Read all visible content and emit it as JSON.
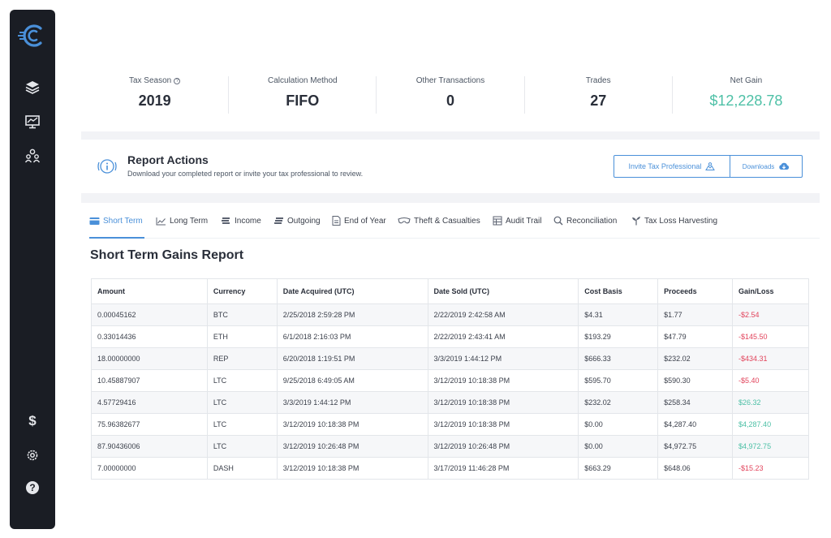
{
  "stats": [
    {
      "label": "Tax Season",
      "value": "2019",
      "has_info": true,
      "help_glyph": "?"
    },
    {
      "label": "Calculation Method",
      "value": "FIFO"
    },
    {
      "label": "Other Transactions",
      "value": "0"
    },
    {
      "label": "Trades",
      "value": "27"
    },
    {
      "label": "Net Gain",
      "value": "$12,228.78",
      "color": "#4dc0a6"
    }
  ],
  "report_actions": {
    "title": "Report Actions",
    "subtitle": "Download your completed report or invite your tax professional to review.",
    "invite_label": "Invite Tax Professional",
    "downloads_label": "Downloads"
  },
  "tabs": [
    {
      "label": "Short Term",
      "icon": "short-term-icon",
      "active": true
    },
    {
      "label": "Long Term",
      "icon": "long-term-icon"
    },
    {
      "label": "Income",
      "icon": "income-icon"
    },
    {
      "label": "Outgoing",
      "icon": "outgoing-icon"
    },
    {
      "label": "End of Year",
      "icon": "end-of-year-icon"
    },
    {
      "label": "Theft & Casualties",
      "icon": "theft-icon"
    },
    {
      "label": "Audit Trail",
      "icon": "audit-trail-icon"
    },
    {
      "label": "Reconciliation",
      "icon": "reconciliation-icon"
    },
    {
      "label": "Tax Loss Harvesting",
      "icon": "tax-loss-icon"
    }
  ],
  "report": {
    "title": "Short Term Gains Report",
    "columns": [
      "Amount",
      "Currency",
      "Date Acquired (UTC)",
      "Date Sold (UTC)",
      "Cost Basis",
      "Proceeds",
      "Gain/Loss"
    ],
    "rows": [
      [
        "0.00045162",
        "BTC",
        "2/25/2018 2:59:28 PM",
        "2/22/2019 2:42:58 AM",
        "$4.31",
        "$1.77",
        "-$2.54"
      ],
      [
        "0.33014436",
        "ETH",
        "6/1/2018 2:16:03 PM",
        "2/22/2019 2:43:41 AM",
        "$193.29",
        "$47.79",
        "-$145.50"
      ],
      [
        "18.00000000",
        "REP",
        "6/20/2018 1:19:51 PM",
        "3/3/2019 1:44:12 PM",
        "$666.33",
        "$232.02",
        "-$434.31"
      ],
      [
        "10.45887907",
        "LTC",
        "9/25/2018 6:49:05 AM",
        "3/12/2019 10:18:38 PM",
        "$595.70",
        "$590.30",
        "-$5.40"
      ],
      [
        "4.57729416",
        "LTC",
        "3/3/2019 1:44:12 PM",
        "3/12/2019 10:18:38 PM",
        "$232.02",
        "$258.34",
        "$26.32"
      ],
      [
        "75.96382677",
        "LTC",
        "3/12/2019 10:18:38 PM",
        "3/12/2019 10:18:38 PM",
        "$0.00",
        "$4,287.40",
        "$4,287.40"
      ],
      [
        "87.90436006",
        "LTC",
        "3/12/2019 10:26:48 PM",
        "3/12/2019 10:26:48 PM",
        "$0.00",
        "$4,972.75",
        "$4,972.75"
      ],
      [
        "7.00000000",
        "DASH",
        "3/12/2019 10:18:38 PM",
        "3/17/2019 11:46:28 PM",
        "$663.29",
        "$648.06",
        "-$15.23"
      ]
    ]
  },
  "sidebar": {
    "items": [
      "layers-icon",
      "chart-monitor-icon",
      "users-icon",
      "dollar-icon",
      "gear-icon",
      "help-icon"
    ],
    "dollar_glyph": "$",
    "help_glyph": "?"
  },
  "colors": {
    "accent": "#4a90d9",
    "positive": "#4dc0a6",
    "negative": "#e2445c",
    "sidebar": "#1a1d24"
  }
}
